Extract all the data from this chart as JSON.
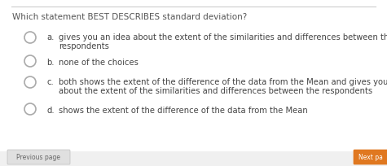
{
  "title": "Which statement BEST DESCRIBES standard deviation?",
  "title_fontsize": 7.5,
  "title_color": "#555555",
  "bg_color": "#f0f0f0",
  "content_bg": "#ffffff",
  "choices": [
    {
      "label": "a.",
      "line1": "gives you an idea about the extent of the similarities and differences between the",
      "line2": "respondents"
    },
    {
      "label": "b.",
      "line1": "none of the choices",
      "line2": ""
    },
    {
      "label": "c.",
      "line1": "both shows the extent of the difference of the data from the Mean and gives you an idea",
      "line2": "about the extent of the similarities and differences between the respondents"
    },
    {
      "label": "d.",
      "line1": "shows the extent of the difference of the data from the Mean",
      "line2": ""
    }
  ],
  "choice_fontsize": 7.2,
  "choice_color": "#444444",
  "circle_color": "#aaaaaa",
  "prev_button_text": "Previous page",
  "next_button_text": "Next pa",
  "prev_button_color": "#e0e0e0",
  "next_button_color": "#e07820",
  "button_text_color_prev": "#666666",
  "button_text_color_next": "#ffffff",
  "top_border_color": "#cccccc"
}
